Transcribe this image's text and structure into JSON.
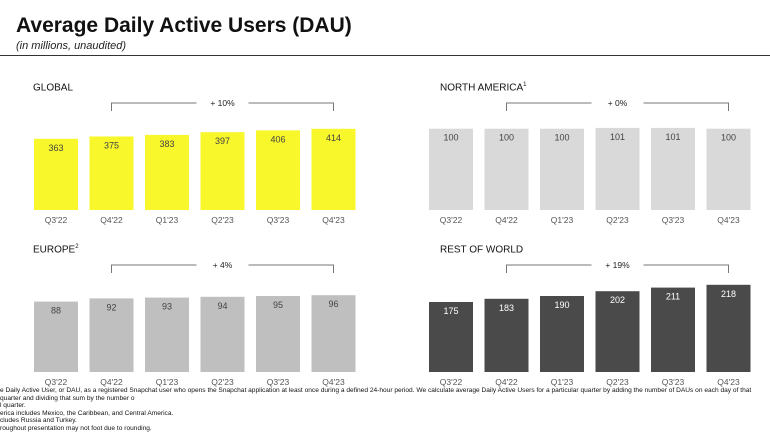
{
  "title": "Average Daily Active Users (DAU)",
  "subtitle": "(in millions, unaudited)",
  "chart_data": [
    {
      "type": "bar",
      "title": "GLOBAL",
      "footnote_mark": "",
      "categories": [
        "Q3'22",
        "Q4'22",
        "Q1'23",
        "Q2'23",
        "Q3'23",
        "Q4'23"
      ],
      "values": [
        363,
        375,
        383,
        397,
        406,
        414
      ],
      "growth_label": "+ 10%",
      "color": "#f7f72b",
      "label_color": "#444444",
      "ylim": [
        0,
        510
      ]
    },
    {
      "type": "bar",
      "title": "NORTH AMERICA",
      "footnote_mark": "1",
      "categories": [
        "Q3'22",
        "Q4'22",
        "Q1'23",
        "Q2'23",
        "Q3'23",
        "Q4'23"
      ],
      "values": [
        100,
        100,
        100,
        101,
        101,
        100
      ],
      "growth_label": "+ 0%",
      "color": "#d9d9d9",
      "label_color": "#444444",
      "ylim": [
        0,
        123
      ]
    },
    {
      "type": "bar",
      "title": "EUROPE",
      "footnote_mark": "2",
      "categories": [
        "Q3'22",
        "Q4'22",
        "Q1'23",
        "Q2'23",
        "Q3'23",
        "Q4'23"
      ],
      "values": [
        88,
        92,
        93,
        94,
        95,
        96
      ],
      "growth_label": "+ 4%",
      "color": "#bfbfbf",
      "label_color": "#444444",
      "ylim": [
        0,
        125
      ]
    },
    {
      "type": "bar",
      "title": "REST OF WORLD",
      "footnote_mark": "",
      "categories": [
        "Q3'22",
        "Q4'22",
        "Q1'23",
        "Q2'23",
        "Q3'23",
        "Q4'23"
      ],
      "values": [
        175,
        183,
        190,
        202,
        211,
        218
      ],
      "growth_label": "+ 19%",
      "color": "#4a4a4a",
      "label_color": "#ffffff",
      "ylim": [
        0,
        250
      ]
    }
  ],
  "footnotes": [
    "e Daily Active User, or DAU, as a registered Snapchat user who opens the Snapchat application at least once during a defined 24-hour period. We calculate average Daily Active Users for a particular quarter by adding the number of DAUs on each day of that quarter and dividing that sum by the number o",
    "l quarter.",
    "erica includes Mexico, the Caribbean, and Central America.",
    "cludes Russia and Turkey.",
    "roughout presentation may not foot due to rounding."
  ]
}
